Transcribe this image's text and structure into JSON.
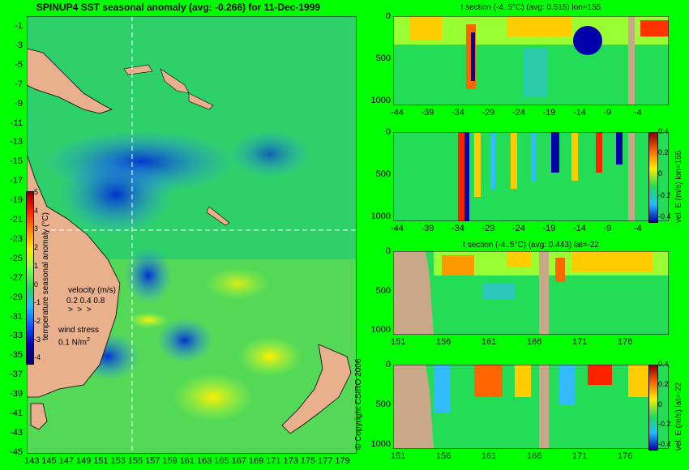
{
  "map": {
    "title": "SPINUP4 SST seasonal anomaly (avg: -0.266) for 11-Dec-1999",
    "y_ticks": [
      "-1",
      "-3",
      "-5",
      "-7",
      "-9",
      "-11",
      "-13",
      "-15",
      "-17",
      "-19",
      "-21",
      "-23",
      "-25",
      "-27",
      "-29",
      "-31",
      "-33",
      "-35",
      "-37",
      "-39",
      "-41",
      "-43",
      "-45"
    ],
    "x_ticks": [
      "143",
      "145",
      "147",
      "149",
      "151",
      "153",
      "155",
      "157",
      "159",
      "161",
      "163",
      "165",
      "167",
      "169",
      "171",
      "173",
      "175",
      "177",
      "179"
    ],
    "colorbar_label": "temperature seasonal anomaly (°C)",
    "colorbar_ticks": [
      "5",
      "4",
      "3",
      "2",
      "1",
      "0",
      "-1",
      "-2",
      "-3",
      "-4"
    ],
    "velocity_title": "velocity (m/s)",
    "velocity_scale": "0.2 0.4 0.8",
    "wind_title": "wind stress",
    "wind_scale": "0.1 N/m",
    "wind_exp": "2",
    "land_color": "#e8b08c"
  },
  "copyright": "© Copyright CSIRO 2006",
  "panels": {
    "p1": {
      "title": "t section (-4..5°C) (avg: 0.515) lon=155",
      "y_ticks": [
        "0",
        "500",
        "1000"
      ],
      "x_ticks": [
        "-44",
        "-39",
        "-34",
        "-29",
        "-24",
        "-19",
        "-14",
        "-9",
        "-4"
      ]
    },
    "p2": {
      "title": "",
      "y_ticks": [
        "0",
        "500",
        "1000"
      ],
      "x_ticks": [
        "-44",
        "-39",
        "-34",
        "-29",
        "-24",
        "-19",
        "-14",
        "-9",
        "-4"
      ],
      "cb_label": "vel. E (m/s) lon=155",
      "cb_ticks": [
        "0.4",
        "0.2",
        "0",
        "-0.2",
        "-0.4"
      ]
    },
    "p3": {
      "title": "t section (-4..5°C) (avg: 0.443) lat=-22",
      "y_ticks": [
        "0",
        "500",
        "1000"
      ],
      "x_ticks": [
        "151",
        "156",
        "161",
        "166",
        "171",
        "176"
      ]
    },
    "p4": {
      "title": "",
      "y_ticks": [
        "0",
        "500",
        "1000"
      ],
      "x_ticks": [
        "151",
        "156",
        "161",
        "166",
        "171",
        "176"
      ],
      "cb_label": "vel. E (m/s) lat=-22",
      "cb_ticks": [
        "0.4",
        "0.2",
        "0",
        "-0.2",
        "-0.4"
      ]
    }
  }
}
